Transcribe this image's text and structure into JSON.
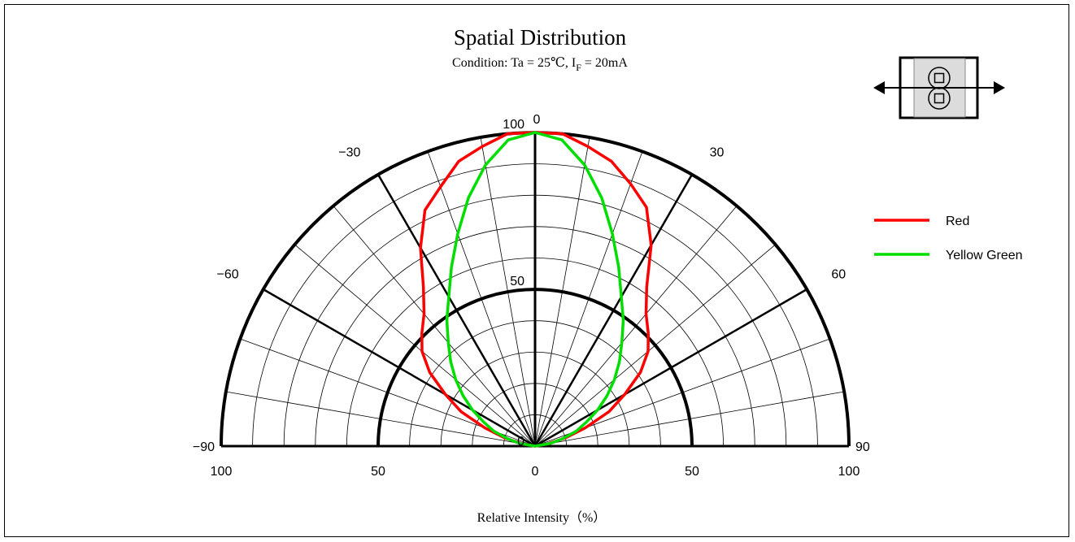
{
  "chart_data": {
    "type": "polar",
    "title": "Spatial Distribution",
    "subtitle": {
      "prefix": "Condition: Ta = 25℃, I",
      "subscript": "F",
      "suffix": " = 20mA"
    },
    "xlabel": "Relative Intensity（%）",
    "angle_range": [
      -90,
      90
    ],
    "radius_range": [
      0,
      100
    ],
    "angle_tick_labels": [
      {
        "angle": -90,
        "text": "−90"
      },
      {
        "angle": -60,
        "text": "−60"
      },
      {
        "angle": -30,
        "text": "−30"
      },
      {
        "angle": 0,
        "text": "0"
      },
      {
        "angle": 30,
        "text": "30"
      },
      {
        "angle": 60,
        "text": "60"
      },
      {
        "angle": 90,
        "text": "90"
      }
    ],
    "radial_tick_labels": [
      {
        "value": 100,
        "text": "100"
      },
      {
        "value": 50,
        "text": "50"
      },
      {
        "value": 0,
        "text": "0"
      }
    ],
    "bottom_axis_labels": [
      {
        "value": -100,
        "text": "100"
      },
      {
        "value": -50,
        "text": "50"
      },
      {
        "value": 0,
        "text": "0"
      },
      {
        "value": 50,
        "text": "50"
      },
      {
        "value": 100,
        "text": "100"
      }
    ],
    "grid": true,
    "legend_position": "right",
    "series": [
      {
        "name": "Red",
        "color": "#ff0000",
        "angles": [
          -90,
          -80,
          -75,
          -70,
          -65,
          -60,
          -55,
          -50,
          -45,
          -40,
          -35,
          -30,
          -25,
          -20,
          -15,
          -10,
          -5,
          0,
          5,
          10,
          15,
          20,
          25,
          30,
          35,
          40,
          45,
          50,
          55,
          60,
          65,
          70,
          75,
          80,
          90
        ],
        "values": [
          0,
          4,
          10,
          17,
          26,
          33,
          41,
          47,
          51,
          55,
          62,
          73,
          83,
          88,
          94,
          97,
          100,
          100,
          100,
          97,
          94,
          89,
          84,
          74,
          62,
          55,
          51,
          47,
          41,
          33,
          26,
          17,
          10,
          4,
          0
        ]
      },
      {
        "name": "Yellow Green",
        "color": "#00dd00",
        "angles": [
          -90,
          -80,
          -75,
          -70,
          -65,
          -60,
          -55,
          -50,
          -45,
          -40,
          -35,
          -30,
          -25,
          -20,
          -15,
          -10,
          -5,
          0,
          5,
          10,
          15,
          20,
          25,
          30,
          35,
          40,
          45,
          50,
          55,
          60,
          65,
          70,
          75,
          80,
          90
        ],
        "values": [
          0,
          5,
          9,
          14,
          18,
          23,
          28,
          33,
          38,
          43,
          49,
          55,
          63,
          72,
          82,
          91,
          98,
          100,
          98,
          91,
          82,
          72,
          63,
          55,
          49,
          43,
          38,
          33,
          28,
          23,
          18,
          14,
          9,
          5,
          0
        ]
      }
    ]
  }
}
